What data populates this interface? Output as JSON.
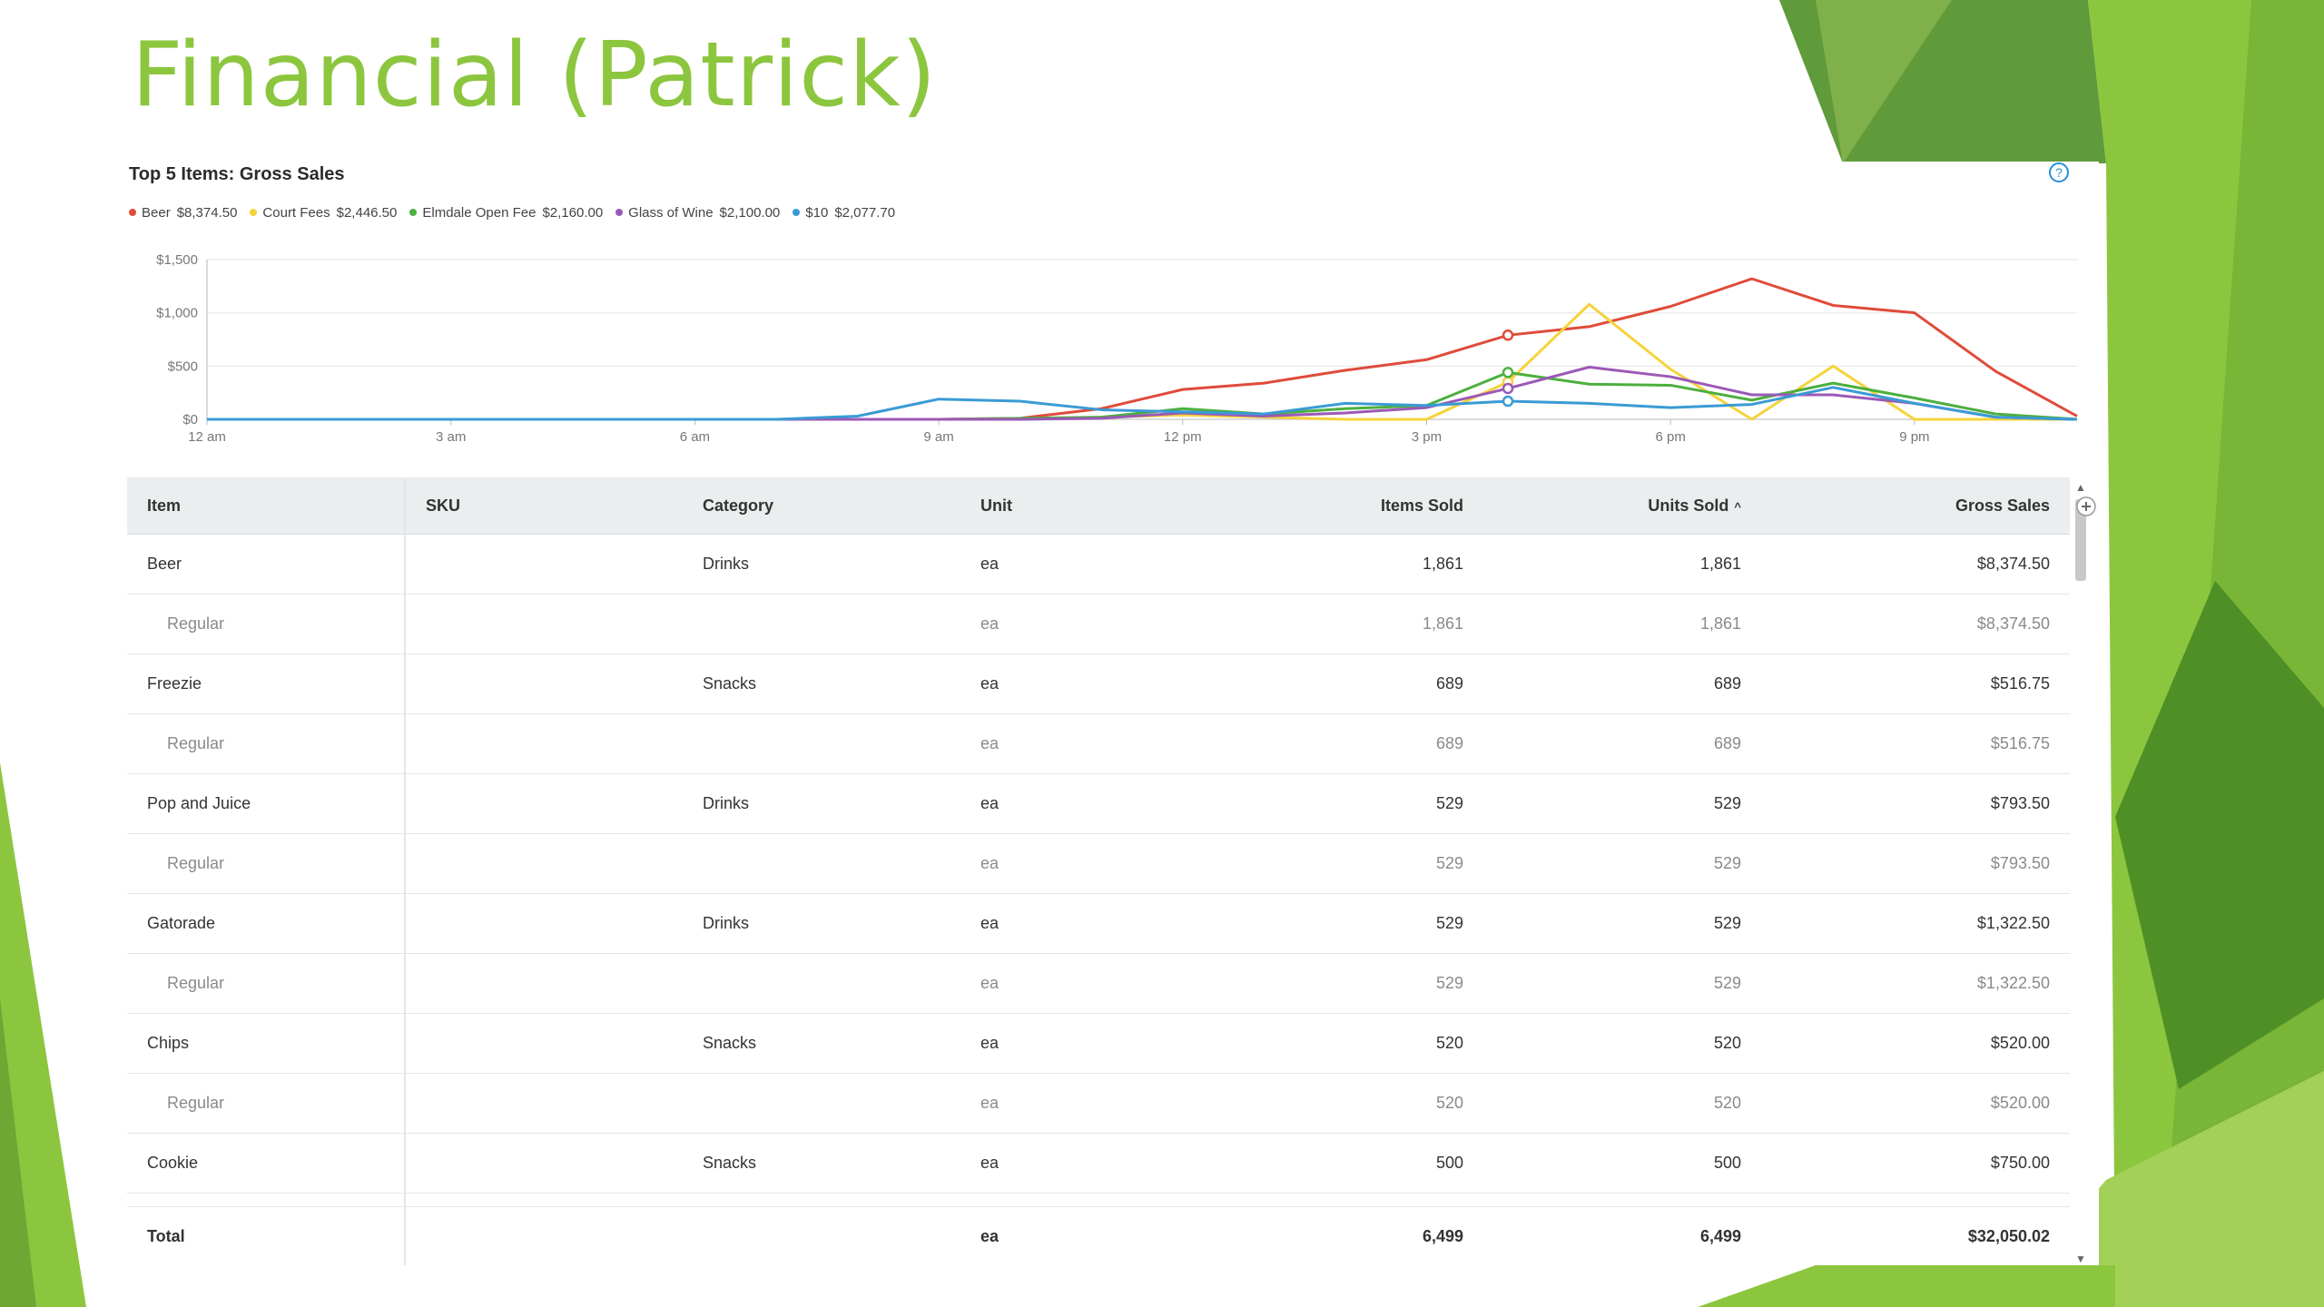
{
  "slide": {
    "title": "Financial (Patrick)"
  },
  "chart_data": {
    "type": "line",
    "title": "Top 5 Items: Gross Sales",
    "legend_position": "top-left",
    "grid": true,
    "x_ticks": [
      "12 am",
      "3 am",
      "6 am",
      "9 am",
      "12 pm",
      "3 pm",
      "6 pm",
      "9 pm"
    ],
    "x_range": [
      0,
      23
    ],
    "ylim": [
      0,
      1500
    ],
    "y_ticks": [
      "$1,500",
      "$1,000",
      "$500",
      "$0"
    ],
    "y_tick_values": [
      1500,
      1000,
      500,
      0
    ],
    "x": [
      0,
      1,
      2,
      3,
      4,
      5,
      6,
      7,
      8,
      9,
      10,
      11,
      12,
      13,
      14,
      15,
      16,
      17,
      18,
      19,
      20,
      21,
      22,
      23
    ],
    "series": [
      {
        "name": "Beer",
        "total": "$8,374.50",
        "color": "#e04b3a",
        "values": [
          0,
          0,
          0,
          0,
          0,
          0,
          0,
          0,
          0,
          0,
          10,
          100,
          280,
          340,
          460,
          560,
          790,
          870,
          1060,
          1320,
          1070,
          1000,
          450,
          30
        ]
      },
      {
        "name": "Court Fees",
        "total": "$2,446.50",
        "color": "#f5d33b",
        "values": [
          0,
          0,
          0,
          0,
          0,
          0,
          0,
          0,
          0,
          0,
          0,
          20,
          40,
          20,
          0,
          0,
          350,
          1080,
          470,
          0,
          500,
          0,
          0,
          0
        ]
      },
      {
        "name": "Elmdale Open Fee",
        "total": "$2,160.00",
        "color": "#4caf3f",
        "values": [
          0,
          0,
          0,
          0,
          0,
          0,
          0,
          0,
          0,
          0,
          10,
          20,
          100,
          50,
          100,
          130,
          440,
          330,
          320,
          180,
          340,
          200,
          50,
          0
        ]
      },
      {
        "name": "Glass of Wine",
        "total": "$2,100.00",
        "color": "#9b59b6",
        "values": [
          0,
          0,
          0,
          0,
          0,
          0,
          0,
          0,
          0,
          0,
          0,
          10,
          60,
          30,
          60,
          110,
          290,
          490,
          400,
          230,
          230,
          150,
          20,
          0
        ]
      },
      {
        "name": "$10",
        "total": "$2,077.70",
        "color": "#3a9bd5",
        "values": [
          0,
          0,
          0,
          0,
          0,
          0,
          0,
          0,
          30,
          190,
          170,
          90,
          70,
          50,
          150,
          130,
          170,
          150,
          110,
          140,
          300,
          150,
          20,
          0
        ]
      }
    ],
    "markers_at_x": 16
  },
  "table": {
    "columns": [
      "Item",
      "SKU",
      "Category",
      "Unit",
      "Items Sold",
      "Units Sold",
      "Gross Sales"
    ],
    "sort_indicator": "^",
    "rows": [
      {
        "item": "Beer",
        "sku": "",
        "category": "Drinks",
        "unit": "ea",
        "items_sold": "1,861",
        "units_sold": "1,861",
        "gross": "$8,374.50",
        "sub": false
      },
      {
        "item": "Regular",
        "sku": "",
        "category": "",
        "unit": "ea",
        "items_sold": "1,861",
        "units_sold": "1,861",
        "gross": "$8,374.50",
        "sub": true
      },
      {
        "item": "Freezie",
        "sku": "",
        "category": "Snacks",
        "unit": "ea",
        "items_sold": "689",
        "units_sold": "689",
        "gross": "$516.75",
        "sub": false
      },
      {
        "item": "Regular",
        "sku": "",
        "category": "",
        "unit": "ea",
        "items_sold": "689",
        "units_sold": "689",
        "gross": "$516.75",
        "sub": true
      },
      {
        "item": "Pop and Juice",
        "sku": "",
        "category": "Drinks",
        "unit": "ea",
        "items_sold": "529",
        "units_sold": "529",
        "gross": "$793.50",
        "sub": false
      },
      {
        "item": "Regular",
        "sku": "",
        "category": "",
        "unit": "ea",
        "items_sold": "529",
        "units_sold": "529",
        "gross": "$793.50",
        "sub": true
      },
      {
        "item": "Gatorade",
        "sku": "",
        "category": "Drinks",
        "unit": "ea",
        "items_sold": "529",
        "units_sold": "529",
        "gross": "$1,322.50",
        "sub": false
      },
      {
        "item": "Regular",
        "sku": "",
        "category": "",
        "unit": "ea",
        "items_sold": "529",
        "units_sold": "529",
        "gross": "$1,322.50",
        "sub": true
      },
      {
        "item": "Chips",
        "sku": "",
        "category": "Snacks",
        "unit": "ea",
        "items_sold": "520",
        "units_sold": "520",
        "gross": "$520.00",
        "sub": false
      },
      {
        "item": "Regular",
        "sku": "",
        "category": "",
        "unit": "ea",
        "items_sold": "520",
        "units_sold": "520",
        "gross": "$520.00",
        "sub": true
      },
      {
        "item": "Cookie",
        "sku": "",
        "category": "Snacks",
        "unit": "ea",
        "items_sold": "500",
        "units_sold": "500",
        "gross": "$750.00",
        "sub": false
      }
    ],
    "total": {
      "label": "Total",
      "unit": "ea",
      "items_sold": "6,499",
      "units_sold": "6,499",
      "gross": "$32,050.02"
    }
  },
  "icons": {
    "help": "help-circle-icon",
    "add_column": "plus-circle-icon",
    "scroll_up": "caret-up-icon",
    "scroll_down": "caret-down-icon"
  },
  "theme": {
    "accent": "#8cc63f",
    "dark_green": "#5a9a2b",
    "mid_green": "#78b43a"
  }
}
